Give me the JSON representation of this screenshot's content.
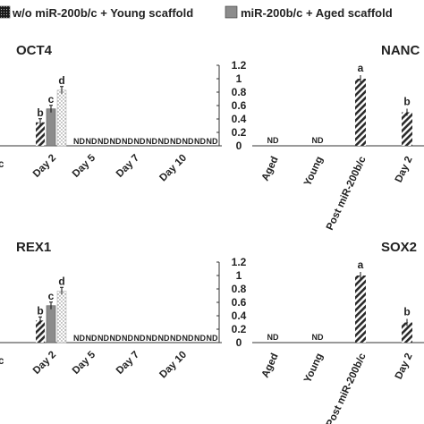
{
  "legend": [
    {
      "label": "w/o miR-200b/c + Young scaffold",
      "pattern": "dense-dots",
      "color": "#1a1a1a"
    },
    {
      "label": "miR-200b/c + Aged scaffold",
      "pattern": "solid",
      "color": "#8c8c8c"
    }
  ],
  "chart_data": [
    {
      "type": "bar",
      "title": "OCT4",
      "categories": [
        "",
        "Day 2",
        "Day 5",
        "Day 7",
        "Day 10"
      ],
      "ylim": [
        0,
        1.2
      ],
      "yticks": [
        "0",
        "0.2",
        "0.4",
        "0.6",
        "0.8",
        "1",
        "1.2"
      ],
      "series": [
        {
          "pattern": "hatch",
          "values": [
            0.35,
            0.35,
            null,
            null,
            null
          ]
        },
        {
          "pattern": "solid",
          "values": [
            null,
            0.55,
            null,
            null,
            null
          ]
        },
        {
          "pattern": "dots",
          "values": [
            null,
            0.83,
            null,
            null,
            null
          ]
        }
      ],
      "significance": {
        "hatch": "b",
        "solid": "c",
        "dots": "d"
      },
      "nd_labels": [
        "ND",
        "ND",
        "ND",
        "ND",
        "ND",
        "ND",
        "ND",
        "ND",
        "ND",
        "ND",
        "ND",
        "ND"
      ]
    },
    {
      "type": "bar",
      "title": "NANC",
      "categories": [
        "Aged",
        "Young",
        "Post miR-200b/c",
        "Day 2"
      ],
      "values": [
        null,
        null,
        1.0,
        0.5
      ],
      "value_labels": [
        "ND",
        "ND",
        "",
        ""
      ],
      "significance": [
        "",
        "",
        "a",
        "b"
      ]
    },
    {
      "type": "bar",
      "title": "REX1",
      "categories": [
        "",
        "Day 2",
        "Day 5",
        "Day 7",
        "Day 10"
      ],
      "ylim": [
        0,
        1.2
      ],
      "yticks": [
        "0",
        "0.2",
        "0.4",
        "0.6",
        "0.8",
        "1",
        "1.2"
      ],
      "series": [
        {
          "pattern": "hatch",
          "values": [
            0.33,
            0.33,
            null,
            null,
            null
          ]
        },
        {
          "pattern": "solid",
          "values": [
            null,
            0.55,
            null,
            null,
            null
          ]
        },
        {
          "pattern": "dots",
          "values": [
            null,
            0.77,
            null,
            null,
            null
          ]
        }
      ],
      "significance": {
        "hatch": "b",
        "solid": "c",
        "dots": "d"
      },
      "nd_labels": [
        "ND",
        "ND",
        "ND",
        "ND",
        "ND",
        "ND",
        "ND",
        "ND",
        "ND",
        "ND",
        "ND",
        "ND"
      ]
    },
    {
      "type": "bar",
      "title": "SOX2",
      "categories": [
        "Aged",
        "Young",
        "Post miR-200b/c",
        "Day 2"
      ],
      "values": [
        null,
        null,
        1.0,
        0.3
      ],
      "value_labels": [
        "ND",
        "ND",
        "",
        ""
      ],
      "significance": [
        "",
        "",
        "a",
        "b"
      ]
    }
  ]
}
